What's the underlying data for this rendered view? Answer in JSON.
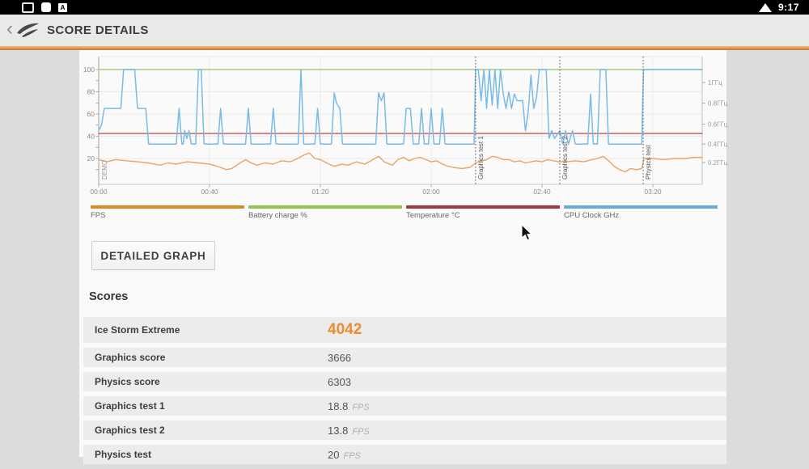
{
  "status_bar": {
    "time": "9:17",
    "app_icon_letter": "A",
    "icons": [
      "screenshot-icon",
      "square-notification-icon",
      "app-a-icon",
      "wifi-icon"
    ]
  },
  "header": {
    "back_glyph": "‹",
    "title": "SCORE DETAILS",
    "logo_icon": "3dmark-swoosh-icon"
  },
  "accent_color": "#da954d",
  "chart_data": {
    "type": "line",
    "x_range": [
      0,
      217.8
    ],
    "y_range": [
      0,
      105
    ],
    "x_ticks": [
      {
        "label": "00:00",
        "t": 0
      },
      {
        "label": "00:40",
        "t": 40
      },
      {
        "label": "01:20",
        "t": 80
      },
      {
        "label": "02:00",
        "t": 120
      },
      {
        "label": "02:40",
        "t": 160
      },
      {
        "label": "03:20",
        "t": 200
      }
    ],
    "y_left_ticks": [
      {
        "label": "100",
        "v": 100
      },
      {
        "label": "80",
        "v": 80
      },
      {
        "label": "60",
        "v": 60
      },
      {
        "label": "40",
        "v": 40
      },
      {
        "label": "20",
        "v": 20
      }
    ],
    "y_right_ticks": [
      {
        "label": "1ГГц",
        "v": 88.4
      },
      {
        "label": "0.8ГГц",
        "v": 69.8
      },
      {
        "label": "0.6ГГц",
        "v": 51
      },
      {
        "label": "0.4ГГц",
        "v": 33
      },
      {
        "label": "0.2ГГц",
        "v": 16.4
      }
    ],
    "markers": [
      {
        "label": "Graphics test 1",
        "t": 136
      },
      {
        "label": "Graphics test 2",
        "t": 166.4
      },
      {
        "label": "Physics test",
        "t": 196.5
      }
    ],
    "demo_label": "DEMO",
    "series": [
      {
        "name": "Battery charge %",
        "color": "#a5cb7e",
        "width": 1.6,
        "points": [
          [
            0,
            100
          ],
          [
            217.8,
            100
          ]
        ]
      },
      {
        "name": "Temperature °C",
        "color": "#c2574f",
        "width": 1.4,
        "points": [
          [
            0,
            42.5
          ],
          [
            217.8,
            42.5
          ]
        ]
      },
      {
        "name": "FPS",
        "color": "#e9a463",
        "width": 1.4,
        "points": [
          [
            0,
            19
          ],
          [
            3,
            17
          ],
          [
            6,
            19
          ],
          [
            10,
            18
          ],
          [
            14,
            17
          ],
          [
            18,
            16
          ],
          [
            22,
            14
          ],
          [
            25,
            16
          ],
          [
            28,
            15
          ],
          [
            32,
            17
          ],
          [
            36,
            16
          ],
          [
            40,
            15
          ],
          [
            44,
            12
          ],
          [
            46,
            10
          ],
          [
            48,
            11
          ],
          [
            51,
            16
          ],
          [
            53,
            19
          ],
          [
            55,
            16
          ],
          [
            57,
            14
          ],
          [
            60,
            16
          ],
          [
            63,
            15
          ],
          [
            66,
            18
          ],
          [
            69,
            17
          ],
          [
            71,
            19
          ],
          [
            74,
            23
          ],
          [
            76,
            25
          ],
          [
            78,
            20
          ],
          [
            80,
            19
          ],
          [
            83,
            15
          ],
          [
            85,
            13
          ],
          [
            88,
            15
          ],
          [
            90,
            14
          ],
          [
            93,
            17
          ],
          [
            96,
            15
          ],
          [
            99,
            19
          ],
          [
            101,
            22
          ],
          [
            103,
            17
          ],
          [
            106,
            14
          ],
          [
            108,
            19
          ],
          [
            110,
            21
          ],
          [
            112,
            18
          ],
          [
            114,
            20
          ],
          [
            116,
            21
          ],
          [
            118,
            19
          ],
          [
            120,
            17
          ],
          [
            122,
            18
          ],
          [
            124,
            15
          ],
          [
            126,
            13
          ],
          [
            128,
            12
          ],
          [
            131,
            11
          ],
          [
            134,
            12
          ],
          [
            136,
            16
          ],
          [
            138,
            18
          ],
          [
            140,
            19
          ],
          [
            142,
            22
          ],
          [
            144,
            21
          ],
          [
            146,
            19
          ],
          [
            148,
            19
          ],
          [
            150,
            17
          ],
          [
            152,
            18
          ],
          [
            154,
            16
          ],
          [
            156,
            17
          ],
          [
            158,
            18
          ],
          [
            160,
            17
          ],
          [
            162,
            19
          ],
          [
            164,
            18
          ],
          [
            166,
            17
          ],
          [
            169,
            17
          ],
          [
            172,
            18
          ],
          [
            175,
            17
          ],
          [
            178,
            19
          ],
          [
            180,
            20
          ],
          [
            182,
            22
          ],
          [
            184,
            18
          ],
          [
            186,
            13
          ],
          [
            188,
            10
          ],
          [
            190,
            8
          ],
          [
            192,
            11
          ],
          [
            194,
            10
          ],
          [
            196,
            11
          ],
          [
            196.8,
            20
          ],
          [
            200,
            20
          ],
          [
            204,
            19
          ],
          [
            208,
            20
          ],
          [
            212,
            20
          ],
          [
            215,
            21
          ],
          [
            217.8,
            21
          ]
        ]
      },
      {
        "name": "CPU Clock GHz",
        "color": "#79bbe8",
        "width": 1.5,
        "points": [
          [
            0,
            45
          ],
          [
            1,
            50
          ],
          [
            2,
            65
          ],
          [
            8,
            65
          ],
          [
            9,
            100
          ],
          [
            13,
            100
          ],
          [
            14,
            65
          ],
          [
            17,
            65
          ],
          [
            18,
            33
          ],
          [
            28,
            33
          ],
          [
            29,
            65
          ],
          [
            30,
            33
          ],
          [
            30.5,
            33
          ],
          [
            31,
            45
          ],
          [
            31.8,
            38
          ],
          [
            32.6,
            45
          ],
          [
            33.4,
            33
          ],
          [
            35,
            33
          ],
          [
            36,
            100
          ],
          [
            37,
            100
          ],
          [
            38,
            33
          ],
          [
            43,
            33
          ],
          [
            44,
            65
          ],
          [
            45,
            33
          ],
          [
            53,
            33
          ],
          [
            54,
            65
          ],
          [
            55,
            33
          ],
          [
            62,
            33
          ],
          [
            63,
            65
          ],
          [
            64,
            33
          ],
          [
            72,
            33
          ],
          [
            73,
            100
          ],
          [
            74,
            33
          ],
          [
            78,
            33
          ],
          [
            79,
            65
          ],
          [
            80,
            33
          ],
          [
            84,
            33
          ],
          [
            85,
            79
          ],
          [
            85.8,
            70
          ],
          [
            87,
            65
          ],
          [
            88,
            33
          ],
          [
            100,
            33
          ],
          [
            101,
            79
          ],
          [
            102,
            72
          ],
          [
            103,
            79
          ],
          [
            104,
            33
          ],
          [
            110,
            33
          ],
          [
            111,
            65
          ],
          [
            112.5,
            65
          ],
          [
            113.5,
            33
          ],
          [
            115.5,
            33
          ],
          [
            116.5,
            65
          ],
          [
            117.5,
            33
          ],
          [
            119,
            33
          ],
          [
            120,
            65
          ],
          [
            121,
            33
          ],
          [
            123,
            33
          ],
          [
            124,
            65
          ],
          [
            125,
            33
          ],
          [
            135.5,
            33
          ],
          [
            136,
            100
          ],
          [
            137,
            100
          ],
          [
            138,
            72
          ],
          [
            139,
            100
          ],
          [
            140,
            65
          ],
          [
            141,
            100
          ],
          [
            142,
            68
          ],
          [
            143,
            100
          ],
          [
            144,
            65
          ],
          [
            145,
            100
          ],
          [
            146,
            78
          ],
          [
            147,
            65
          ],
          [
            148,
            80
          ],
          [
            149,
            65
          ],
          [
            150,
            78
          ],
          [
            151,
            72
          ],
          [
            153,
            72
          ],
          [
            154,
            45
          ],
          [
            155,
            62
          ],
          [
            156,
            95
          ],
          [
            157,
            65
          ],
          [
            158,
            75
          ],
          [
            159,
            100
          ],
          [
            161.5,
            100
          ],
          [
            162.5,
            38
          ],
          [
            163.5,
            45
          ],
          [
            164.5,
            38
          ],
          [
            166.4,
            45
          ],
          [
            167.5,
            33
          ],
          [
            168.5,
            45
          ],
          [
            169.5,
            33
          ],
          [
            171,
            45
          ],
          [
            172,
            33
          ],
          [
            176.5,
            33
          ],
          [
            177.5,
            78
          ],
          [
            178.5,
            33
          ],
          [
            180,
            33
          ],
          [
            181,
            100
          ],
          [
            183,
            100
          ],
          [
            184,
            33
          ],
          [
            196,
            33
          ],
          [
            196.6,
            100
          ],
          [
            217.8,
            100
          ]
        ]
      }
    ]
  },
  "legend": [
    {
      "label": "FPS",
      "color": "#d8892b"
    },
    {
      "label": "Battery charge %",
      "color": "#8dc550"
    },
    {
      "label": "Temperature °C",
      "color": "#9e3a3a"
    },
    {
      "label": "CPU Clock GHz",
      "color": "#64aede"
    }
  ],
  "buttons": {
    "detailed_graph": "DETAILED GRAPH"
  },
  "scores": {
    "heading": "Scores",
    "highlight_color": "#ee8b2e",
    "rows": [
      {
        "label": "Ice Storm Extreme",
        "value": "4042",
        "unit": "",
        "highlight": true
      },
      {
        "label": "Graphics score",
        "value": "3666",
        "unit": "",
        "highlight": false
      },
      {
        "label": "Physics score",
        "value": "6303",
        "unit": "",
        "highlight": false
      },
      {
        "label": "Graphics test 1",
        "value": "18.8",
        "unit": "FPS",
        "highlight": false
      },
      {
        "label": "Graphics test 2",
        "value": "13.8",
        "unit": "FPS",
        "highlight": false
      },
      {
        "label": "Physics test",
        "value": "20",
        "unit": "FPS",
        "highlight": false
      }
    ]
  }
}
